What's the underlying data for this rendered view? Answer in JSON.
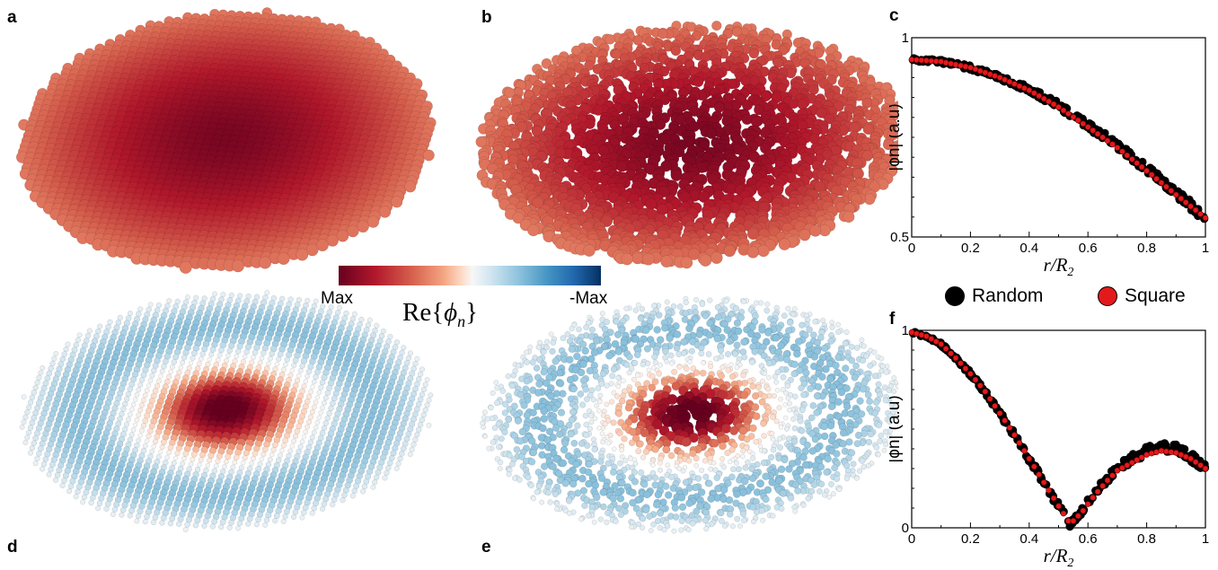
{
  "panels": {
    "a": "a",
    "b": "b",
    "c": "c",
    "d": "d",
    "e": "e",
    "f": "f"
  },
  "colorbar": {
    "min_label": "Max",
    "max_label": "-Max",
    "title": "Re{ϕn}",
    "colors": [
      "#67001f",
      "#b2182b",
      "#d6604d",
      "#f4a582",
      "#fddbc7",
      "#f7f7f7",
      "#d1e5f0",
      "#92c5de",
      "#4393c3",
      "#2166ac",
      "#053061"
    ]
  },
  "legend": [
    {
      "label": "Random",
      "color": "#000000"
    },
    {
      "label": "Square",
      "color": "#e31a1c"
    }
  ],
  "chart_data": [
    {
      "panel": "c",
      "type": "scatter",
      "xlabel": "r/R2",
      "ylabel": "|ϕn| (a.u)",
      "xlim": [
        0,
        1
      ],
      "ylim": [
        0.5,
        1
      ],
      "xticks": [
        "0",
        "0.2",
        "0.4",
        "0.6",
        "0.8",
        "1"
      ],
      "yticks": [
        "0.5",
        "1"
      ],
      "series": [
        {
          "name": "Random",
          "color": "#000000",
          "x": [
            0,
            0.1,
            0.2,
            0.3,
            0.4,
            0.5,
            0.6,
            0.7,
            0.8,
            0.9,
            1.0
          ],
          "y": [
            0.945,
            0.94,
            0.925,
            0.9,
            0.87,
            0.83,
            0.78,
            0.73,
            0.67,
            0.61,
            0.55
          ]
        },
        {
          "name": "Square",
          "color": "#e31a1c",
          "x": [
            0,
            0.1,
            0.2,
            0.3,
            0.4,
            0.5,
            0.6,
            0.7,
            0.8,
            0.9,
            1.0
          ],
          "y": [
            0.945,
            0.94,
            0.925,
            0.9,
            0.868,
            0.826,
            0.776,
            0.724,
            0.666,
            0.606,
            0.548
          ]
        }
      ]
    },
    {
      "panel": "f",
      "type": "scatter",
      "xlabel": "r/R2",
      "ylabel": "|ϕn| (a.u)",
      "xlim": [
        0,
        1
      ],
      "ylim": [
        0,
        1
      ],
      "xticks": [
        "0",
        "0.2",
        "0.4",
        "0.6",
        "0.8",
        "1"
      ],
      "yticks": [
        "0",
        "1"
      ],
      "series": [
        {
          "name": "Random",
          "color": "#000000",
          "x": [
            0,
            0.05,
            0.1,
            0.15,
            0.2,
            0.25,
            0.3,
            0.35,
            0.4,
            0.45,
            0.5,
            0.54,
            0.58,
            0.62,
            0.66,
            0.7,
            0.75,
            0.8,
            0.85,
            0.9,
            0.95,
            1.0
          ],
          "y": [
            0.99,
            0.97,
            0.93,
            0.86,
            0.78,
            0.69,
            0.58,
            0.47,
            0.35,
            0.23,
            0.11,
            0.02,
            0.09,
            0.17,
            0.24,
            0.3,
            0.35,
            0.39,
            0.41,
            0.4,
            0.36,
            0.31
          ]
        },
        {
          "name": "Square",
          "color": "#e31a1c",
          "x": [
            0,
            0.05,
            0.1,
            0.15,
            0.2,
            0.25,
            0.3,
            0.35,
            0.4,
            0.45,
            0.5,
            0.54,
            0.58,
            0.62,
            0.66,
            0.7,
            0.75,
            0.8,
            0.85,
            0.9,
            0.95,
            1.0
          ],
          "y": [
            0.99,
            0.97,
            0.93,
            0.86,
            0.78,
            0.69,
            0.58,
            0.47,
            0.35,
            0.23,
            0.11,
            0.02,
            0.08,
            0.16,
            0.23,
            0.29,
            0.33,
            0.37,
            0.39,
            0.38,
            0.35,
            0.3
          ]
        }
      ]
    }
  ]
}
